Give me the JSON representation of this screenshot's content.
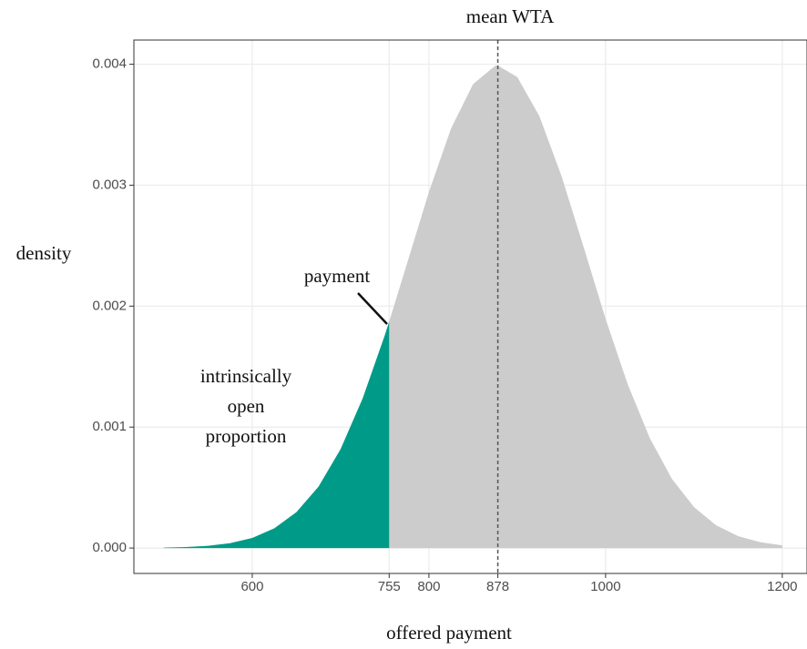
{
  "chart_data": {
    "type": "area",
    "title": "mean  WTA",
    "x_label": "offered  payment",
    "y_label": "density",
    "x": [
      500,
      525,
      550,
      575,
      600,
      625,
      650,
      675,
      700,
      725,
      750,
      755,
      775,
      800,
      825,
      850,
      875,
      878,
      900,
      925,
      950,
      975,
      1000,
      1025,
      1050,
      1075,
      1100,
      1125,
      1150,
      1175,
      1200
    ],
    "values": [
      3.2e-06,
      7.9e-06,
      1.84e-05,
      4.05e-05,
      8.37e-05,
      0.000163,
      0.000297,
      0.000508,
      0.000818,
      0.001238,
      0.001759,
      0.001873,
      0.002348,
      0.002944,
      0.003468,
      0.003836,
      0.003987,
      0.003989,
      0.003894,
      0.003572,
      0.003078,
      0.002492,
      0.001895,
      0.001354,
      0.000909,
      0.000573,
      0.000339,
      0.000189,
      9.87e-05,
      4.85e-05,
      2.24e-05
    ],
    "color": "#cccccc",
    "highlight_color": "#009b88",
    "highlight_end": 755,
    "vline": 878,
    "xlim": [
      466,
      1228
    ],
    "ylim": [
      -0.00021,
      0.0042
    ],
    "xticks": [
      600,
      755,
      800,
      878,
      1000,
      1200
    ],
    "yticks": [
      {
        "value": 0,
        "label": "0.000"
      },
      {
        "value": 0.001,
        "label": "0.001"
      },
      {
        "value": 0.002,
        "label": "0.002"
      },
      {
        "value": 0.003,
        "label": "0.003"
      },
      {
        "value": 0.004,
        "label": "0.004"
      }
    ],
    "grid": true,
    "annotations": [
      {
        "lines": [
          "payment"
        ]
      },
      {
        "lines": [
          "intrinsically",
          "open",
          "proportion"
        ]
      }
    ]
  }
}
